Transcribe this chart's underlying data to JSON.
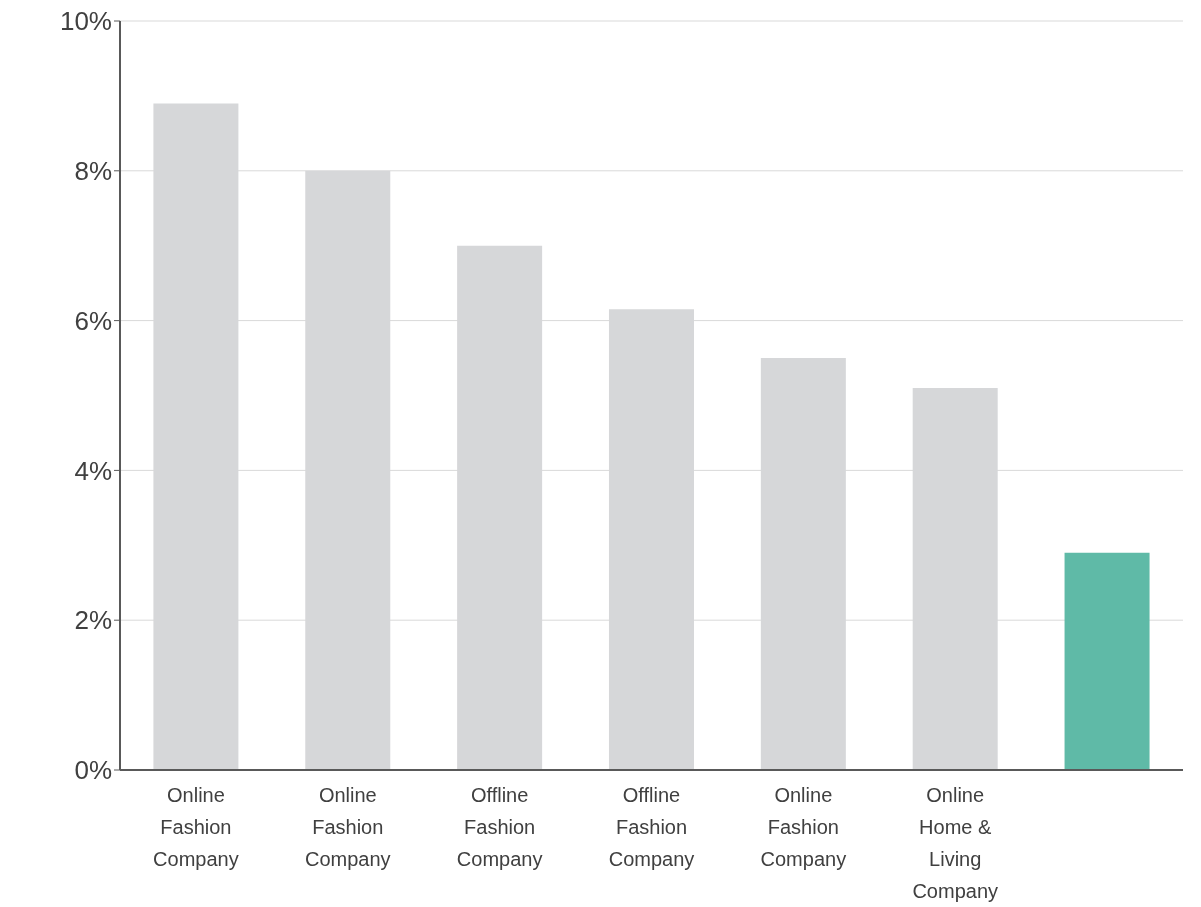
{
  "chart_data": {
    "type": "bar",
    "categories": [
      "Online Fashion Company",
      "Online Fashion Company",
      "Offline Fashion Company",
      "Offline Fashion Company",
      "Online Fashion Company",
      "Online Home & Living Company",
      null
    ],
    "values": [
      8.9,
      8.0,
      7.0,
      6.15,
      5.5,
      5.1,
      2.9
    ],
    "colors": [
      "#d6d7d9",
      "#d6d7d9",
      "#d6d7d9",
      "#d6d7d9",
      "#d6d7d9",
      "#d6d7d9",
      "#5fbaa7"
    ],
    "ylim": [
      0,
      10
    ],
    "yticks": [
      {
        "value": 0,
        "label": "0%"
      },
      {
        "value": 2,
        "label": "2%"
      },
      {
        "value": 4,
        "label": "4%"
      },
      {
        "value": 6,
        "label": "6%"
      },
      {
        "value": 8,
        "label": "8%"
      },
      {
        "value": 10,
        "label": "10%"
      }
    ],
    "grid": "y"
  }
}
